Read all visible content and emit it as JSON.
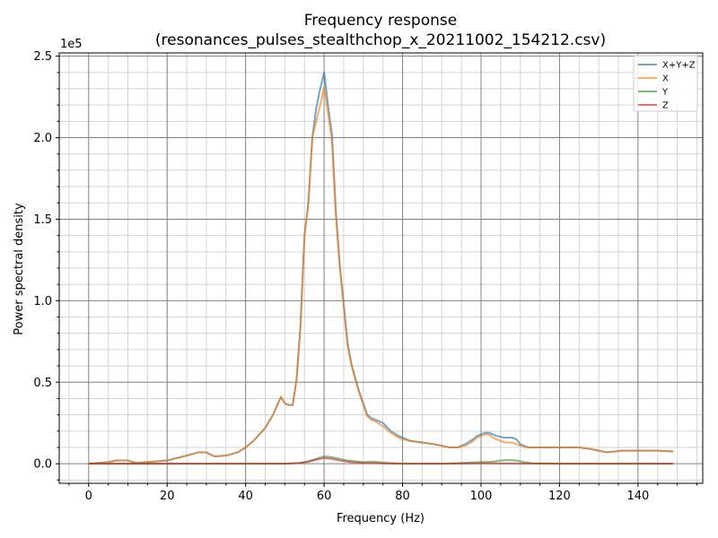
{
  "chart_data": {
    "type": "line",
    "title": "Frequency response",
    "subtitle": "(resonances_pulses_stealthchop_x_20211002_154212.csv)",
    "xlabel": "Frequency (Hz)",
    "ylabel": "Power spectral density",
    "y_offset_label": "1e5",
    "xlim": [
      -7.5,
      156.5
    ],
    "ylim": [
      -0.12,
      2.52
    ],
    "x_ticks": [
      0,
      20,
      40,
      60,
      80,
      100,
      120,
      140
    ],
    "y_ticks": [
      0.0,
      0.5,
      1.0,
      1.5,
      2.0,
      2.5
    ],
    "x_tick_labels": [
      "0",
      "20",
      "40",
      "60",
      "80",
      "100",
      "120",
      "140"
    ],
    "y_tick_labels": [
      "0.0",
      "0.5",
      "1.0",
      "1.5",
      "2.0",
      "2.5"
    ],
    "grid": true,
    "legend_position": "top-right",
    "series": [
      {
        "name": "X+Y+Z",
        "color": "#1f77b4",
        "x": [
          0,
          5,
          7,
          10,
          12,
          15,
          20,
          25,
          28,
          30,
          32,
          35,
          38,
          40,
          42,
          45,
          47,
          49,
          50,
          51,
          52,
          53,
          54,
          55,
          56,
          57,
          58,
          59,
          60,
          61,
          62,
          63,
          64,
          65,
          66,
          67,
          68,
          69,
          70,
          71,
          72,
          73,
          75,
          77,
          79,
          80,
          82,
          85,
          88,
          90,
          92,
          94,
          96,
          98,
          99,
          100,
          101,
          102,
          103,
          104,
          106,
          108,
          109,
          110,
          112,
          115,
          120,
          125,
          128,
          130,
          132,
          134,
          136,
          138,
          140,
          145,
          149
        ],
        "y": [
          0,
          0.01,
          0.02,
          0.02,
          0.005,
          0.01,
          0.02,
          0.05,
          0.07,
          0.07,
          0.045,
          0.05,
          0.07,
          0.1,
          0.14,
          0.22,
          0.3,
          0.41,
          0.37,
          0.36,
          0.36,
          0.52,
          0.85,
          1.4,
          1.6,
          2.0,
          2.18,
          2.3,
          2.4,
          2.2,
          2.02,
          1.55,
          1.22,
          0.98,
          0.74,
          0.61,
          0.52,
          0.44,
          0.37,
          0.3,
          0.28,
          0.27,
          0.25,
          0.2,
          0.17,
          0.16,
          0.14,
          0.13,
          0.12,
          0.11,
          0.1,
          0.1,
          0.12,
          0.15,
          0.17,
          0.18,
          0.19,
          0.19,
          0.18,
          0.17,
          0.16,
          0.16,
          0.15,
          0.12,
          0.1,
          0.1,
          0.1,
          0.1,
          0.09,
          0.08,
          0.07,
          0.075,
          0.08,
          0.08,
          0.08,
          0.08,
          0.075
        ]
      },
      {
        "name": "X",
        "color": "#ff7f0e",
        "x": [
          0,
          5,
          7,
          10,
          12,
          15,
          20,
          25,
          28,
          30,
          32,
          35,
          38,
          40,
          42,
          45,
          47,
          49,
          50,
          51,
          52,
          53,
          54,
          55,
          56,
          57,
          58,
          59,
          60,
          61,
          62,
          63,
          64,
          65,
          66,
          67,
          68,
          69,
          70,
          71,
          72,
          73,
          75,
          77,
          79,
          80,
          82,
          85,
          88,
          90,
          92,
          94,
          96,
          98,
          99,
          100,
          101,
          102,
          103,
          104,
          106,
          108,
          109,
          110,
          112,
          115,
          120,
          125,
          128,
          130,
          132,
          134,
          136,
          138,
          140,
          145,
          149
        ],
        "y": [
          0,
          0.01,
          0.02,
          0.02,
          0.005,
          0.01,
          0.02,
          0.05,
          0.07,
          0.07,
          0.045,
          0.05,
          0.07,
          0.1,
          0.14,
          0.22,
          0.3,
          0.41,
          0.37,
          0.36,
          0.36,
          0.52,
          0.85,
          1.4,
          1.6,
          2.0,
          2.1,
          2.2,
          2.31,
          2.15,
          1.98,
          1.52,
          1.2,
          0.96,
          0.72,
          0.6,
          0.51,
          0.43,
          0.36,
          0.29,
          0.27,
          0.26,
          0.23,
          0.19,
          0.16,
          0.15,
          0.14,
          0.13,
          0.12,
          0.11,
          0.1,
          0.1,
          0.11,
          0.14,
          0.16,
          0.17,
          0.18,
          0.18,
          0.16,
          0.15,
          0.13,
          0.13,
          0.12,
          0.11,
          0.1,
          0.1,
          0.1,
          0.1,
          0.09,
          0.08,
          0.07,
          0.075,
          0.08,
          0.08,
          0.08,
          0.08,
          0.075
        ]
      },
      {
        "name": "Y",
        "color": "#2ca02c",
        "x": [
          0,
          10,
          20,
          30,
          40,
          50,
          54,
          56,
          58,
          60,
          62,
          64,
          66,
          68,
          70,
          72,
          74,
          76,
          78,
          80,
          90,
          95,
          100,
          103,
          105,
          107,
          109,
          111,
          113,
          120,
          130,
          140,
          149
        ],
        "y": [
          0,
          0,
          0,
          0,
          0,
          0,
          0.005,
          0.015,
          0.03,
          0.045,
          0.04,
          0.03,
          0.02,
          0.015,
          0.01,
          0.012,
          0.01,
          0.005,
          0.003,
          0,
          0,
          0.005,
          0.01,
          0.012,
          0.02,
          0.022,
          0.02,
          0.01,
          0.003,
          0,
          0,
          0,
          0
        ]
      },
      {
        "name": "Z",
        "color": "#d62728",
        "x": [
          0,
          10,
          20,
          30,
          40,
          50,
          54,
          56,
          58,
          60,
          62,
          64,
          66,
          68,
          70,
          74,
          78,
          80,
          90,
          100,
          110,
          120,
          130,
          140,
          149
        ],
        "y": [
          0,
          0,
          0,
          0,
          0,
          0,
          0.005,
          0.012,
          0.025,
          0.035,
          0.03,
          0.02,
          0.012,
          0.008,
          0.005,
          0.003,
          0.001,
          0,
          0,
          0.003,
          0.002,
          0,
          0,
          0,
          0
        ]
      }
    ]
  }
}
